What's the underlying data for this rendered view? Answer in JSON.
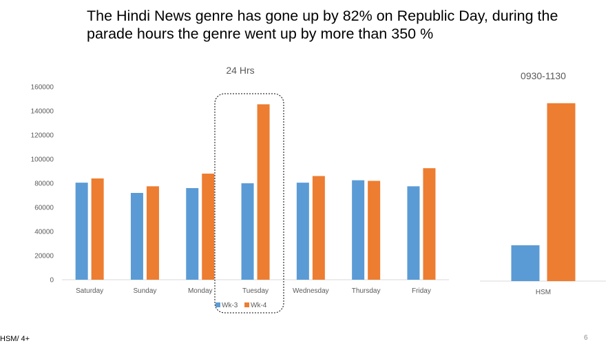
{
  "slide": {
    "headline_line1": "The Hindi News genre has gone up  by 82% on Republic Day, during the",
    "headline_line2": "parade hours the genre went up by more than 350 %",
    "footer_left": "HSM/ 4+",
    "slide_number": "6"
  },
  "colors": {
    "wk3": "#5b9bd5",
    "wk4": "#ed7d31"
  },
  "chart_data": [
    {
      "type": "bar",
      "title": "24 Hrs",
      "xlabel": "",
      "ylabel": "",
      "categories": [
        "Saturday",
        "Sunday",
        "Monday",
        "Tuesday",
        "Wednesday",
        "Thursday",
        "Friday"
      ],
      "series": [
        {
          "name": "Wk-3",
          "values": [
            80500,
            72000,
            76000,
            80000,
            80500,
            82500,
            77500
          ]
        },
        {
          "name": "Wk-4",
          "values": [
            84000,
            77500,
            88000,
            145500,
            86000,
            82000,
            92500
          ]
        }
      ],
      "ylim": [
        0,
        160000
      ],
      "yticks": [
        "0",
        "20000",
        "40000",
        "60000",
        "80000",
        "100000",
        "120000",
        "140000",
        "160000"
      ],
      "grid": false,
      "legend": "bottom",
      "highlight": "Tuesday"
    },
    {
      "type": "bar",
      "title": "0930-1130",
      "xlabel": "",
      "ylabel": "",
      "categories": [
        "HSM"
      ],
      "series": [
        {
          "name": "Wk-3",
          "values": [
            29500
          ]
        },
        {
          "name": "Wk-4",
          "values": [
            146500
          ]
        }
      ],
      "ylim": [
        0,
        160000
      ],
      "grid": false,
      "legend": "none"
    }
  ]
}
